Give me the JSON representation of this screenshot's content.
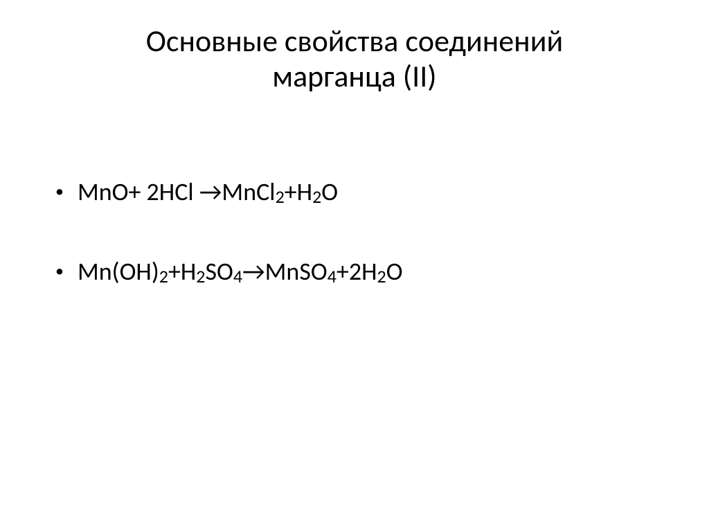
{
  "slide": {
    "title_line1": "Основные свойства соединений",
    "title_line2": "марганца (II)",
    "title_fontsize": 44,
    "body_fontsize": 36,
    "text_color": "#000000",
    "background_color": "#ffffff",
    "bullets": [
      {
        "tokens": [
          {
            "t": "MnO+ 2HCl  →MnCl"
          },
          {
            "t": "2",
            "sub": true
          },
          {
            "t": "+H"
          },
          {
            "t": "2",
            "sub": true
          },
          {
            "t": "O"
          }
        ]
      },
      {
        "tokens": [
          {
            "t": "Mn(OH)"
          },
          {
            "t": "2",
            "sub": true
          },
          {
            "t": "+H"
          },
          {
            "t": "2",
            "sub": true
          },
          {
            "t": "SO"
          },
          {
            "t": "4",
            "sub": true
          },
          {
            "t": "→MnSO"
          },
          {
            "t": "4",
            "sub": true
          },
          {
            "t": "+2H"
          },
          {
            "t": "2",
            "sub": true
          },
          {
            "t": "O"
          }
        ]
      }
    ]
  }
}
